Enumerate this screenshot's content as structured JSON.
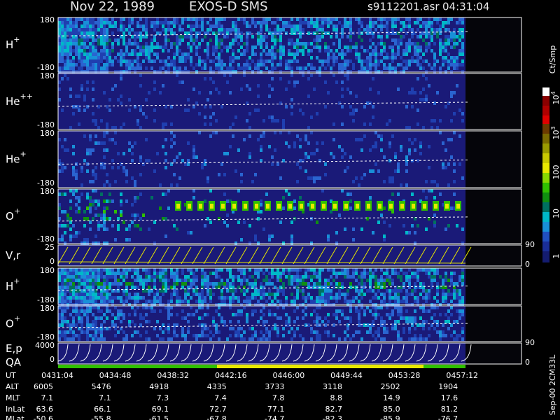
{
  "header": {
    "date": "Nov 22, 1989",
    "instrument": "EXOS-D SMS",
    "file": "s9112201.asr",
    "time": "04:31:04"
  },
  "panels": [
    {
      "ion": "H",
      "charge": "+",
      "top": "180",
      "bottom": "-180"
    },
    {
      "ion": "He",
      "charge": "++",
      "top": "180",
      "bottom": "-180"
    },
    {
      "ion": "He",
      "charge": "+",
      "top": "180",
      "bottom": "-180"
    },
    {
      "ion": "O",
      "charge": "+",
      "top": "180",
      "bottom": "-180"
    },
    {
      "ion": "V,r",
      "top": "25",
      "bottom": "0",
      "right_top": "90",
      "right_bottom": "0"
    },
    {
      "ion": "H",
      "charge": "+",
      "top": "180",
      "bottom": "-180"
    },
    {
      "ion": "O",
      "charge": "+",
      "top": "180",
      "bottom": "-180"
    },
    {
      "ion": "E,p",
      "ion2": "QA",
      "top": "4000",
      "bottom": "0",
      "right_top": "90",
      "right_bottom": "0"
    }
  ],
  "colorbar": {
    "unit": "Ct/Smp",
    "labels": [
      {
        "base": "10",
        "exp": "4"
      },
      {
        "base": "10",
        "exp": "3"
      },
      "100",
      "10",
      "1"
    ]
  },
  "table": {
    "rows": [
      {
        "name": "UT",
        "values": [
          "0431:04",
          "0434:48",
          "0438:32",
          "0442:16",
          "0446:00",
          "0449:44",
          "0453:28",
          "0457:12"
        ]
      },
      {
        "name": "ALT",
        "values": [
          "6005",
          "5476",
          "4918",
          "4335",
          "3733",
          "3118",
          "2502",
          "1904"
        ]
      },
      {
        "name": "MLT",
        "values": [
          "7.1",
          "7.1",
          "7.3",
          "7.4",
          "7.8",
          "8.8",
          "14.9",
          "17.6"
        ]
      },
      {
        "name": "InLat",
        "values": [
          "63.6",
          "66.1",
          "69.1",
          "72.7",
          "77.1",
          "82.7",
          "85.0",
          "81.2"
        ]
      },
      {
        "name": "MLat",
        "values": [
          "-50.6",
          "-55.8",
          "-61.5",
          "-67.8",
          "-74.7",
          "-82.3",
          "-85.9",
          "-76.7"
        ]
      }
    ]
  },
  "footer": "Sep-00 2CM33L"
}
